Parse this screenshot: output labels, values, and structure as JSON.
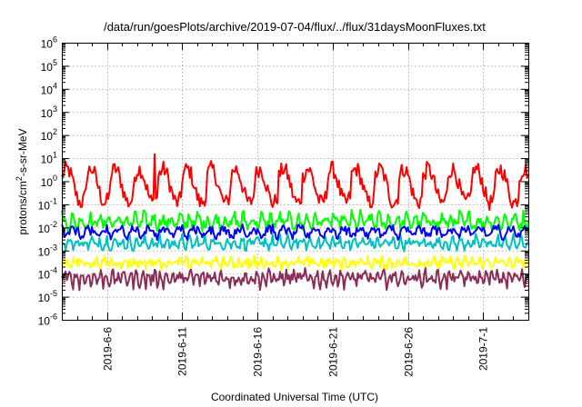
{
  "chart_data": {
    "type": "line",
    "title": "/data/run/goesPlots/archive/2019-07-04/flux/../flux/31daysMoonFluxes.txt",
    "xlabel": "Coordinated Universal Time (UTC)",
    "ylabel_parts": [
      "protons/cm",
      "2",
      "-s-sr-MeV"
    ],
    "y_scale": "log",
    "ylim_exponents": [
      -6,
      6
    ],
    "y_tick_labels": [
      {
        "base": "10",
        "exp": "6"
      },
      {
        "base": "10",
        "exp": "5"
      },
      {
        "base": "10",
        "exp": "4"
      },
      {
        "base": "10",
        "exp": "3"
      },
      {
        "base": "10",
        "exp": "2"
      },
      {
        "base": "10",
        "exp": "1"
      },
      {
        "base": "10",
        "exp": "0"
      },
      {
        "base": "10",
        "exp": "-1"
      },
      {
        "base": "10",
        "exp": "-2"
      },
      {
        "base": "10",
        "exp": "-3"
      },
      {
        "base": "10",
        "exp": "-4"
      },
      {
        "base": "10",
        "exp": "-5"
      },
      {
        "base": "10",
        "exp": "-6"
      }
    ],
    "x_range_days": [
      "2019-06-03",
      "2019-07-04"
    ],
    "x_ticks": [
      {
        "date": "2019-06-06",
        "label": "2019-6-6"
      },
      {
        "date": "2019-06-11",
        "label": "2019-6-11"
      },
      {
        "date": "2019-06-16",
        "label": "2019-6-16"
      },
      {
        "date": "2019-06-21",
        "label": "2019-6-21"
      },
      {
        "date": "2019-06-26",
        "label": "2019-6-26"
      },
      {
        "date": "2019-07-01",
        "label": "2019-7-1"
      }
    ],
    "grid": true,
    "series": [
      {
        "color": "#ff0000",
        "period_days": 1.6,
        "base_exp": -0.2,
        "amp_exp": 0.9,
        "noise_exp": 0.35,
        "spikes": [
          {
            "date": "2019-06-09T04:00",
            "value": 15
          }
        ]
      },
      {
        "color": "#00ff00",
        "period_days": 0.6,
        "base_exp": -1.75,
        "amp_exp": 0.3,
        "noise_exp": 0.25,
        "spikes": []
      },
      {
        "color": "#00c0c0",
        "period_days": 0.5,
        "base_exp": -2.7,
        "amp_exp": 0.25,
        "noise_exp": 0.2,
        "spikes": []
      },
      {
        "color": "#0000ff",
        "period_days": 1.0,
        "base_exp": -2.2,
        "amp_exp": 0.45,
        "noise_exp": 0.15,
        "spikes": []
      },
      {
        "color": "#ffff00",
        "period_days": 0.5,
        "base_exp": -3.55,
        "amp_exp": 0.3,
        "noise_exp": 0.2,
        "spikes": []
      },
      {
        "color": "#8b2d57",
        "period_days": 0.4,
        "base_exp": -4.2,
        "amp_exp": 0.3,
        "noise_exp": 0.25,
        "spikes": []
      }
    ]
  }
}
